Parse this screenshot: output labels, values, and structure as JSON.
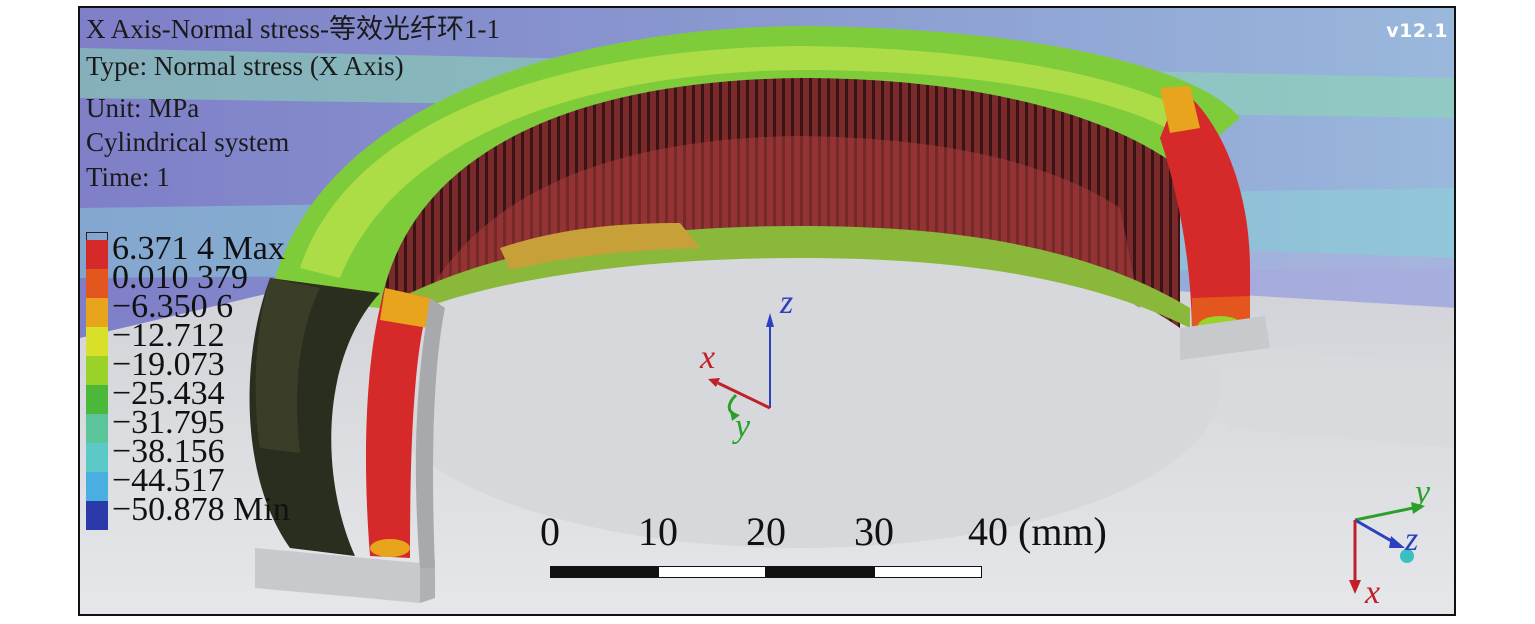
{
  "viewer": {
    "title": "X Axis-Normal stress-等效光纤环1-1",
    "type_line": "Type: Normal stress (X Axis)",
    "unit_line": "Unit: MPa",
    "system_line": "Cylindrical system",
    "time_line": "Time: 1",
    "version": "v12.1"
  },
  "legend": {
    "entries": [
      {
        "label": "6.371 4 Max",
        "color": "#d62a2a"
      },
      {
        "label": "0.010 379",
        "color": "#e3561e"
      },
      {
        "label": "−6.350 6",
        "color": "#e8a41c"
      },
      {
        "label": "−12.712",
        "color": "#d8e02a"
      },
      {
        "label": "−19.073",
        "color": "#9ad22a"
      },
      {
        "label": "−25.434",
        "color": "#4cb83a"
      },
      {
        "label": "−31.795",
        "color": "#5cc49a"
      },
      {
        "label": "−38.156",
        "color": "#5cc8c8"
      },
      {
        "label": "−44.517",
        "color": "#4aaee0"
      },
      {
        "label": "−50.878 Min",
        "color": "#2a3aa8"
      }
    ]
  },
  "scale_bar": {
    "ticks": [
      "0",
      "10",
      "20",
      "30",
      "40 (mm)"
    ]
  },
  "center_axes": {
    "x": "x",
    "y": "y",
    "z": "z"
  },
  "corner_triad": {
    "x": "x",
    "y": "y",
    "z": "z"
  },
  "colors": {
    "x_axis": "#c0202a",
    "y_axis": "#2aa02a",
    "z_axis": "#2a40c0",
    "background": "#8a93c8"
  }
}
